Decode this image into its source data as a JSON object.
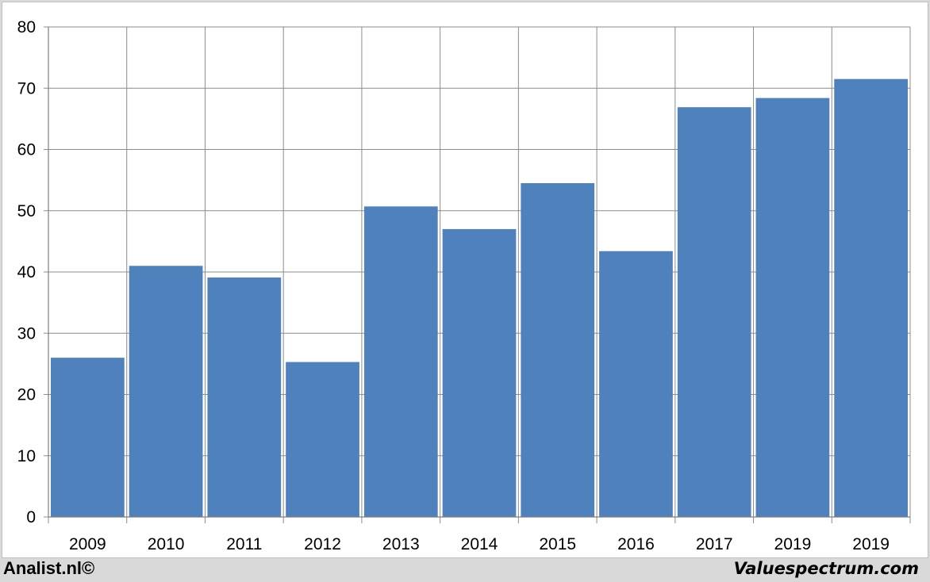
{
  "chart_data": {
    "type": "bar",
    "categories": [
      "2009",
      "2010",
      "2011",
      "2012",
      "2013",
      "2014",
      "2015",
      "2016",
      "2017",
      "2019",
      "2019"
    ],
    "values": [
      26,
      41,
      39.1,
      25.3,
      50.7,
      47,
      54.5,
      43.4,
      66.9,
      68.4,
      71.5
    ],
    "ylim": [
      0,
      80
    ],
    "yticks": [
      0,
      10,
      20,
      30,
      40,
      50,
      60,
      70,
      80
    ],
    "grid": true,
    "legend": "none",
    "bar_color": "#4f81bd",
    "grid_color": "#8c8c8c"
  },
  "footer": {
    "left": "Analist.nl©",
    "right": "Valuespectrum.com"
  }
}
